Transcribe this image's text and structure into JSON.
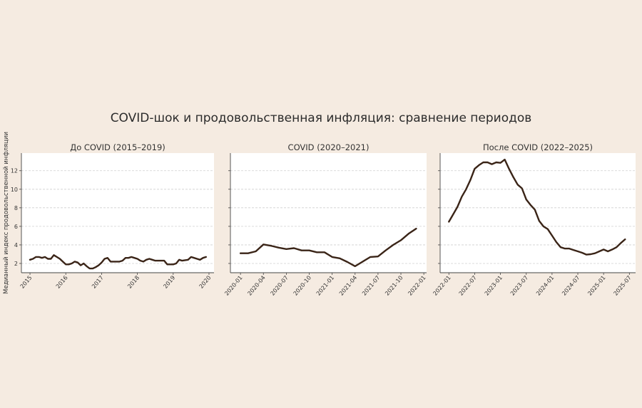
{
  "chart_data": {
    "type": "line",
    "title": "COVID-шок и продовольственная инфляция: сравнение периодов",
    "ylabel": "Медианный индекс продовольственной инфляции",
    "ylim": [
      1.0,
      13.9
    ],
    "yticks": [
      2,
      4,
      6,
      8,
      10,
      12
    ],
    "grid": "horizontal dashed",
    "line_color": "#3a2417",
    "panel_bg": "#ffffff",
    "page_bg": "#f5ebe1",
    "panels": [
      {
        "title": "До COVID (2015–2019)",
        "start": "2015-01",
        "xlim": [
          2014.76,
          2020.14
        ],
        "xticks": [
          {
            "v": 2015,
            "label": "2015"
          },
          {
            "v": 2016,
            "label": "2016"
          },
          {
            "v": 2017,
            "label": "2017"
          },
          {
            "v": 2018,
            "label": "2018"
          },
          {
            "v": 2019,
            "label": "2019"
          },
          {
            "v": 2020,
            "label": "2020"
          }
        ],
        "values": [
          2.4,
          2.5,
          2.7,
          2.7,
          2.6,
          2.7,
          2.5,
          2.5,
          2.9,
          2.7,
          2.5,
          2.2,
          1.9,
          1.9,
          2.0,
          2.2,
          2.1,
          1.8,
          2.0,
          1.7,
          1.45,
          1.45,
          1.6,
          1.8,
          2.1,
          2.5,
          2.6,
          2.2,
          2.2,
          2.2,
          2.2,
          2.3,
          2.6,
          2.6,
          2.7,
          2.6,
          2.5,
          2.3,
          2.2,
          2.4,
          2.5,
          2.4,
          2.3,
          2.3,
          2.3,
          2.3,
          1.9,
          1.9,
          1.9,
          2.0,
          2.4,
          2.3,
          2.35,
          2.4,
          2.7,
          2.6,
          2.5,
          2.4,
          2.6,
          2.7
        ]
      },
      {
        "title": "COVID (2020–2021)",
        "start": "2020-01",
        "xlim": [
          2019.89,
          2022.03
        ],
        "xticks": [
          {
            "v": 2020,
            "label": "2020-01"
          },
          {
            "v": 2020.25,
            "label": "2020-04"
          },
          {
            "v": 2020.5,
            "label": "2020-07"
          },
          {
            "v": 2020.75,
            "label": "2020-10"
          },
          {
            "v": 2021,
            "label": "2021-01"
          },
          {
            "v": 2021.25,
            "label": "2021-04"
          },
          {
            "v": 2021.5,
            "label": "2021-07"
          },
          {
            "v": 2021.75,
            "label": "2021-10"
          },
          {
            "v": 2022,
            "label": "2022-01"
          }
        ],
        "values": [
          3.1,
          3.1,
          3.3,
          4.05,
          3.9,
          3.7,
          3.55,
          3.65,
          3.4,
          3.4,
          3.2,
          3.2,
          2.7,
          2.55,
          2.15,
          1.7,
          2.2,
          2.7,
          2.75,
          3.4,
          4.0,
          4.5,
          5.2,
          5.75
        ]
      },
      {
        "title": "После COVID (2022–2025)",
        "start": "2022-01",
        "xlim": [
          2021.83,
          2025.62
        ],
        "xticks": [
          {
            "v": 2022,
            "label": "2022-01"
          },
          {
            "v": 2022.5,
            "label": "2022-07"
          },
          {
            "v": 2023,
            "label": "2023-01"
          },
          {
            "v": 2023.5,
            "label": "2023-07"
          },
          {
            "v": 2024,
            "label": "2024-01"
          },
          {
            "v": 2024.5,
            "label": "2024-07"
          },
          {
            "v": 2025,
            "label": "2025-01"
          },
          {
            "v": 2025.5,
            "label": "2025-07"
          }
        ],
        "values": [
          6.5,
          7.3,
          8.1,
          9.2,
          10.0,
          11.0,
          12.2,
          12.6,
          12.9,
          12.9,
          12.7,
          12.9,
          12.85,
          13.2,
          12.2,
          11.3,
          10.5,
          10.1,
          8.9,
          8.3,
          7.8,
          6.6,
          6.0,
          5.7,
          5.0,
          4.3,
          3.75,
          3.6,
          3.6,
          3.45,
          3.3,
          3.15,
          2.95,
          3.0,
          3.1,
          3.3,
          3.5,
          3.3,
          3.5,
          3.75,
          4.2,
          4.6
        ]
      }
    ]
  }
}
